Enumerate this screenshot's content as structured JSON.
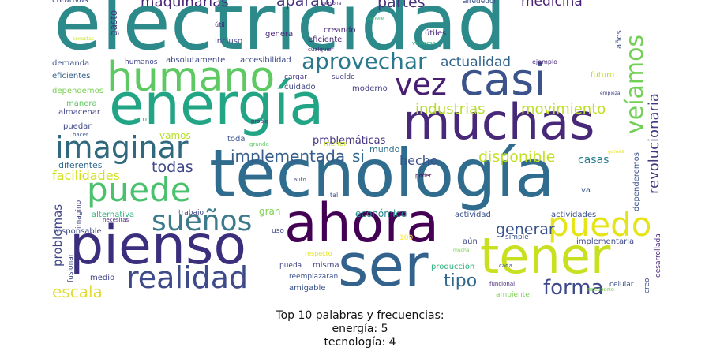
{
  "chart_data": {
    "type": "wordcloud",
    "words": [
      {
        "text": "electricidad",
        "size": 98,
        "color": "#2c8a8b"
      },
      {
        "text": "energía",
        "size": 72,
        "color": "#22a585"
      },
      {
        "text": "tecnología",
        "size": 84,
        "color": "#2f6c8e"
      },
      {
        "text": "muchas",
        "size": 62,
        "color": "#482878"
      },
      {
        "text": "ahora",
        "size": 68,
        "color": "#440154"
      },
      {
        "text": "pienso",
        "size": 68,
        "color": "#3b2f7d"
      },
      {
        "text": "ser",
        "size": 74,
        "color": "#33638d"
      },
      {
        "text": "tener",
        "size": 62,
        "color": "#c8e020"
      },
      {
        "text": "humano",
        "size": 52,
        "color": "#5ec962"
      },
      {
        "text": "casi",
        "size": 56,
        "color": "#3b528b"
      },
      {
        "text": "puede",
        "size": 42,
        "color": "#4ac16d"
      },
      {
        "text": "puedo",
        "size": 42,
        "color": "#e5e419"
      },
      {
        "text": "imaginar",
        "size": 38,
        "color": "#30697d"
      },
      {
        "text": "realidad",
        "size": 38,
        "color": "#3e4a89"
      },
      {
        "text": "sueños",
        "size": 36,
        "color": "#3d7a8c"
      },
      {
        "text": "vez",
        "size": 38,
        "color": "#481f70"
      },
      {
        "text": "veíamos",
        "size": 30,
        "color": "#72d056"
      },
      {
        "text": "aprovechar",
        "size": 28,
        "color": "#2a788e"
      },
      {
        "text": "forma",
        "size": 26,
        "color": "#3e4989"
      },
      {
        "text": "tipo",
        "size": 22,
        "color": "#306a8e"
      },
      {
        "text": "escala",
        "size": 20,
        "color": "#e1dd37"
      },
      {
        "text": "implementada",
        "size": 20,
        "color": "#355e8d"
      },
      {
        "text": "todas",
        "size": 19,
        "color": "#3f4889"
      },
      {
        "text": "generar",
        "size": 19,
        "color": "#3a548c"
      },
      {
        "text": "disponible",
        "size": 19,
        "color": "#c2df23"
      },
      {
        "text": "industrias",
        "size": 18,
        "color": "#b5de2b"
      },
      {
        "text": "movimiento",
        "size": 18,
        "color": "#bddf26"
      },
      {
        "text": "actualidad",
        "size": 17,
        "color": "#32658e"
      },
      {
        "text": "revolucionaria",
        "size": 18,
        "color": "#443983"
      },
      {
        "text": "maquinarias",
        "size": 18,
        "color": "#482475"
      },
      {
        "text": "partes",
        "size": 19,
        "color": "#46327e"
      },
      {
        "text": "aparato",
        "size": 19,
        "color": "#463480"
      },
      {
        "text": "medicina",
        "size": 17,
        "color": "#482173"
      },
      {
        "text": "facilidades",
        "size": 16,
        "color": "#d0e11c"
      },
      {
        "text": "hecho",
        "size": 16,
        "color": "#3b518b"
      },
      {
        "text": "problemas",
        "size": 15,
        "color": "#414487"
      },
      {
        "text": "casas",
        "size": 14,
        "color": "#287d8e"
      },
      {
        "text": "si",
        "size": 20,
        "color": "#31688e"
      },
      {
        "text": "problemáticas",
        "size": 13,
        "color": "#453581"
      },
      {
        "text": "mundo",
        "size": 11,
        "color": "#2d708e"
      },
      {
        "text": "económico",
        "size": 12,
        "color": "#238a8d"
      },
      {
        "text": "gran",
        "size": 12,
        "color": "#7ad151"
      },
      {
        "text": "vamos",
        "size": 12,
        "color": "#bade28"
      },
      {
        "text": "toda",
        "size": 10,
        "color": "#3b528b"
      },
      {
        "text": "diferentes",
        "size": 11,
        "color": "#31688e"
      },
      {
        "text": "puedan",
        "size": 10,
        "color": "#3e4a89"
      },
      {
        "text": "manera",
        "size": 10,
        "color": "#5ec962"
      },
      {
        "text": "almacenar",
        "size": 10,
        "color": "#414487"
      },
      {
        "text": "dependemos",
        "size": 10,
        "color": "#7ad151"
      },
      {
        "text": "eficientes",
        "size": 10,
        "color": "#33638d"
      },
      {
        "text": "demanda",
        "size": 10,
        "color": "#3b528b"
      },
      {
        "text": "humanos",
        "size": 9,
        "color": "#414487"
      },
      {
        "text": "absolutamente",
        "size": 10,
        "color": "#3e4a89"
      },
      {
        "text": "accesibilidad",
        "size": 10,
        "color": "#3e4a89"
      },
      {
        "text": "cargar",
        "size": 9,
        "color": "#453882"
      },
      {
        "text": "sueldo",
        "size": 9,
        "color": "#433e85"
      },
      {
        "text": "moderno",
        "size": 10,
        "color": "#433e85"
      },
      {
        "text": "cuidado",
        "size": 10,
        "color": "#3f4788"
      },
      {
        "text": "creando",
        "size": 10,
        "color": "#482374"
      },
      {
        "text": "eficiente",
        "size": 10,
        "color": "#482878"
      },
      {
        "text": "genera",
        "size": 10,
        "color": "#482878"
      },
      {
        "text": "incluso",
        "size": 10,
        "color": "#414487"
      },
      {
        "text": "útil",
        "size": 8,
        "color": "#482475"
      },
      {
        "text": "cualquier",
        "size": 7,
        "color": "#482475"
      },
      {
        "text": "útiles",
        "size": 10,
        "color": "#482576"
      },
      {
        "text": "volverse",
        "size": 7,
        "color": "#2db27d"
      },
      {
        "text": "alrededor",
        "size": 9,
        "color": "#3b528b"
      },
      {
        "text": "gasto",
        "size": 12,
        "color": "#453781"
      },
      {
        "text": "creativas",
        "size": 10,
        "color": "#3e4989"
      },
      {
        "text": "conectas",
        "size": 6,
        "color": "#c8e020"
      },
      {
        "text": "persona",
        "size": 6,
        "color": "#482878"
      },
      {
        "text": "genere",
        "size": 6,
        "color": "#2db27d"
      },
      {
        "text": "años",
        "size": 10,
        "color": "#3b528b"
      },
      {
        "text": "ejemplo",
        "size": 8,
        "color": "#482677"
      },
      {
        "text": "futuro",
        "size": 10,
        "color": "#bddf26"
      },
      {
        "text": "empieza",
        "size": 6,
        "color": "#414487"
      },
      {
        "text": "gomes",
        "size": 6,
        "color": "#e5e419"
      },
      {
        "text": "dependeremos",
        "size": 10,
        "color": "#3b528b"
      },
      {
        "text": "eco",
        "size": 9,
        "color": "#2db27d"
      },
      {
        "text": "propia",
        "size": 7,
        "color": "#482878"
      },
      {
        "text": "hacer",
        "size": 7,
        "color": "#3b528b"
      },
      {
        "text": "grande",
        "size": 7,
        "color": "#5ec962"
      },
      {
        "text": "menor",
        "size": 9,
        "color": "#c8e020"
      },
      {
        "text": "auto",
        "size": 7,
        "color": "#3e4a89"
      },
      {
        "text": "poder",
        "size": 7,
        "color": "#440154"
      },
      {
        "text": "tal",
        "size": 8,
        "color": "#3e4a89"
      },
      {
        "text": "va",
        "size": 10,
        "color": "#3b528b"
      },
      {
        "text": "imagino",
        "size": 9,
        "color": "#414487"
      },
      {
        "text": "alternativa",
        "size": 10,
        "color": "#2db27d"
      },
      {
        "text": "trabajo",
        "size": 9,
        "color": "#3e4a89"
      },
      {
        "text": "necesitas",
        "size": 7,
        "color": "#482878"
      },
      {
        "text": "responsable",
        "size": 10,
        "color": "#3e4a89"
      },
      {
        "text": "uso",
        "size": 9,
        "color": "#3e4a89"
      },
      {
        "text": "100",
        "size": 9,
        "color": "#fde725"
      },
      {
        "text": "aún",
        "size": 10,
        "color": "#3e4a89"
      },
      {
        "text": "simple",
        "size": 9,
        "color": "#3b528b"
      },
      {
        "text": "actividad",
        "size": 10,
        "color": "#3b528b"
      },
      {
        "text": "actividades",
        "size": 10,
        "color": "#3b528b"
      },
      {
        "text": "implementarla",
        "size": 10,
        "color": "#3e4a89"
      },
      {
        "text": "desarrollada",
        "size": 9,
        "color": "#482878"
      },
      {
        "text": "fusionar",
        "size": 9,
        "color": "#414487"
      },
      {
        "text": "medio",
        "size": 10,
        "color": "#414487"
      },
      {
        "text": "respecto",
        "size": 8,
        "color": "#e5e419"
      },
      {
        "text": "mucha",
        "size": 6,
        "color": "#7ad151"
      },
      {
        "text": "pueda",
        "size": 9,
        "color": "#414487"
      },
      {
        "text": "misma",
        "size": 10,
        "color": "#414487"
      },
      {
        "text": "reemplazaran",
        "size": 9,
        "color": "#3b528b"
      },
      {
        "text": "amigable",
        "size": 10,
        "color": "#3b528b"
      },
      {
        "text": "producción",
        "size": 10,
        "color": "#2db27d"
      },
      {
        "text": "cada",
        "size": 7,
        "color": "#3b528b"
      },
      {
        "text": "funcional",
        "size": 7,
        "color": "#482878"
      },
      {
        "text": "ambiente",
        "size": 9,
        "color": "#7ad151"
      },
      {
        "text": "celular",
        "size": 9,
        "color": "#3b528b"
      },
      {
        "text": "necesario",
        "size": 7,
        "color": "#7ad151"
      },
      {
        "text": "creo",
        "size": 9,
        "color": "#3e4a89"
      }
    ]
  },
  "caption": {
    "line1": "Top 10 palabras y frecuencias:",
    "line2": "energía: 5",
    "line3": "tecnología: 4"
  }
}
